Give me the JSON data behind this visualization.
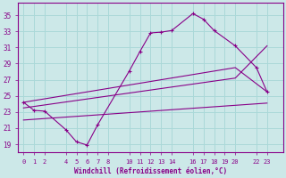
{
  "xlabel": "Windchill (Refroidissement éolien,°C)",
  "background_color": "#cce8e8",
  "grid_color": "#aad8d8",
  "line_color": "#880088",
  "xticks": [
    0,
    1,
    2,
    4,
    5,
    6,
    7,
    8,
    10,
    11,
    12,
    13,
    14,
    16,
    17,
    18,
    19,
    20,
    22,
    23
  ],
  "yticks": [
    19,
    21,
    23,
    25,
    27,
    29,
    31,
    33,
    35
  ],
  "ylim": [
    18.0,
    36.5
  ],
  "xlim": [
    -0.5,
    24.5
  ],
  "series_main": {
    "x": [
      0,
      1,
      2,
      4,
      5,
      6,
      7,
      10,
      11,
      12,
      13,
      14,
      16,
      17,
      18,
      20,
      22,
      23
    ],
    "y": [
      24.2,
      23.2,
      23.1,
      20.8,
      19.3,
      18.9,
      21.4,
      28.1,
      30.5,
      32.8,
      32.9,
      33.1,
      35.2,
      34.5,
      33.1,
      31.2,
      28.5,
      25.5
    ]
  },
  "series_line1": {
    "x": [
      0,
      20,
      23
    ],
    "y": [
      24.2,
      28.5,
      25.5
    ]
  },
  "series_line2": {
    "x": [
      0,
      20,
      23
    ],
    "y": [
      23.5,
      27.2,
      31.2
    ]
  },
  "series_line3": {
    "x": [
      0,
      23
    ],
    "y": [
      22.0,
      24.1
    ]
  }
}
